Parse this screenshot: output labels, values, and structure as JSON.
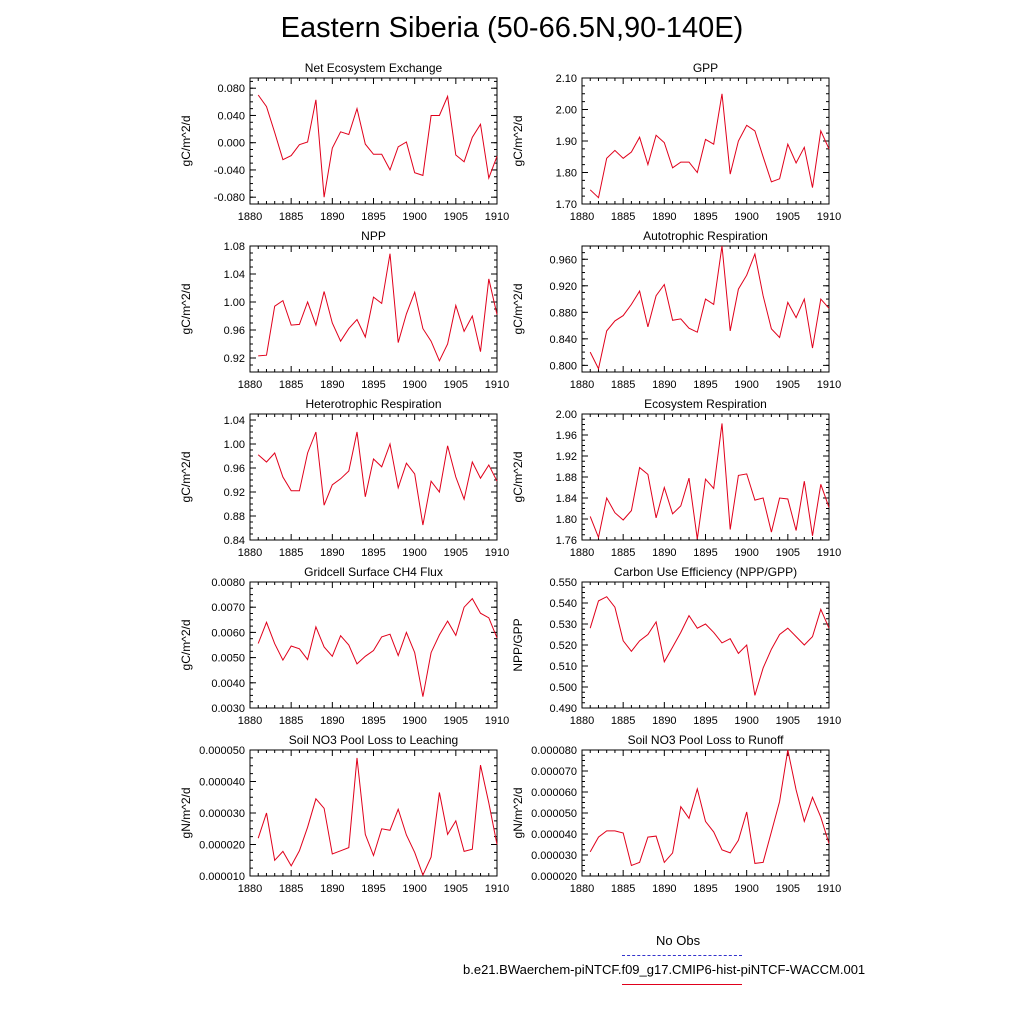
{
  "title": "Eastern Siberia (50-66.5N,90-140E)",
  "legend": {
    "obs_label": "No Obs",
    "obs_color": "#3333cc",
    "model_label": "b.e21.BWaerchem-piNTCF.f09_g17.CMIP6-hist-piNTCF-WACCM.001",
    "model_color": "#e0001b"
  },
  "chart_data": [
    {
      "type": "line",
      "title": "Net Ecosystem Exchange",
      "ylabel": "gC/m^2/d",
      "xlim": [
        1880,
        1910
      ],
      "ylim": [
        -0.09,
        0.095
      ],
      "xticks": [
        1880,
        1885,
        1890,
        1895,
        1900,
        1905,
        1910
      ],
      "yticks": [
        "-0.080",
        "-0.040",
        "0.000",
        "0.040",
        "0.080"
      ],
      "x": [
        1881,
        1882,
        1883,
        1884,
        1885,
        1886,
        1887,
        1888,
        1889,
        1890,
        1891,
        1892,
        1893,
        1894,
        1895,
        1896,
        1897,
        1898,
        1899,
        1900,
        1901,
        1902,
        1903,
        1904,
        1905,
        1906,
        1907,
        1908,
        1909,
        1910
      ],
      "values": [
        0.07,
        0.053,
        0.015,
        -0.025,
        -0.019,
        -0.003,
        0.001,
        0.063,
        -0.08,
        -0.008,
        0.016,
        0.012,
        0.05,
        -0.002,
        -0.017,
        -0.017,
        -0.04,
        -0.006,
        0.001,
        -0.044,
        -0.048,
        0.04,
        0.04,
        0.068,
        -0.018,
        -0.028,
        0.008,
        0.027,
        -0.052,
        -0.02
      ],
      "series_name": ""
    },
    {
      "type": "line",
      "title": "GPP",
      "ylabel": "gC/m^2/d",
      "xlim": [
        1880,
        1910
      ],
      "ylim": [
        1.7,
        2.1
      ],
      "xticks": [
        1880,
        1885,
        1890,
        1895,
        1900,
        1905,
        1910
      ],
      "yticks": [
        "1.70",
        "1.80",
        "1.90",
        "2.00",
        "2.10"
      ],
      "x": [
        1881,
        1882,
        1883,
        1884,
        1885,
        1886,
        1887,
        1888,
        1889,
        1890,
        1891,
        1892,
        1893,
        1894,
        1895,
        1896,
        1897,
        1898,
        1899,
        1900,
        1901,
        1902,
        1903,
        1904,
        1905,
        1906,
        1907,
        1908,
        1909,
        1910
      ],
      "values": [
        1.745,
        1.72,
        1.845,
        1.87,
        1.845,
        1.865,
        1.912,
        1.825,
        1.918,
        1.895,
        1.815,
        1.833,
        1.833,
        1.8,
        1.905,
        1.89,
        2.05,
        1.795,
        1.9,
        1.95,
        1.932,
        1.85,
        1.77,
        1.78,
        1.89,
        1.83,
        1.88,
        1.752,
        1.932,
        1.875
      ],
      "series_name": ""
    },
    {
      "type": "line",
      "title": "NPP",
      "ylabel": "gC/m^2/d",
      "xlim": [
        1880,
        1910
      ],
      "ylim": [
        0.9,
        1.08
      ],
      "xticks": [
        1880,
        1885,
        1890,
        1895,
        1900,
        1905,
        1910
      ],
      "yticks": [
        "0.92",
        "0.96",
        "1.00",
        "1.04",
        "1.08"
      ],
      "x": [
        1881,
        1882,
        1883,
        1884,
        1885,
        1886,
        1887,
        1888,
        1889,
        1890,
        1891,
        1892,
        1893,
        1894,
        1895,
        1896,
        1897,
        1898,
        1899,
        1900,
        1901,
        1902,
        1903,
        1904,
        1905,
        1906,
        1907,
        1908,
        1909,
        1910
      ],
      "values": [
        0.923,
        0.924,
        0.994,
        1.002,
        0.967,
        0.968,
        1.0,
        0.967,
        1.015,
        0.97,
        0.944,
        0.962,
        0.975,
        0.95,
        1.007,
        0.998,
        1.069,
        0.942,
        0.983,
        1.014,
        0.962,
        0.944,
        0.916,
        0.94,
        0.995,
        0.958,
        0.98,
        0.929,
        1.033,
        0.982
      ],
      "series_name": ""
    },
    {
      "type": "line",
      "title": "Autotrophic Respiration",
      "ylabel": "gC/m^2/d",
      "xlim": [
        1880,
        1910
      ],
      "ylim": [
        0.79,
        0.98
      ],
      "xticks": [
        1880,
        1885,
        1890,
        1895,
        1900,
        1905,
        1910
      ],
      "yticks": [
        "0.800",
        "0.840",
        "0.880",
        "0.920",
        "0.960"
      ],
      "x": [
        1881,
        1882,
        1883,
        1884,
        1885,
        1886,
        1887,
        1888,
        1889,
        1890,
        1891,
        1892,
        1893,
        1894,
        1895,
        1896,
        1897,
        1898,
        1899,
        1900,
        1901,
        1902,
        1903,
        1904,
        1905,
        1906,
        1907,
        1908,
        1909,
        1910
      ],
      "values": [
        0.82,
        0.795,
        0.852,
        0.867,
        0.875,
        0.892,
        0.912,
        0.858,
        0.905,
        0.922,
        0.868,
        0.87,
        0.856,
        0.85,
        0.9,
        0.892,
        0.98,
        0.852,
        0.915,
        0.936,
        0.968,
        0.905,
        0.855,
        0.842,
        0.895,
        0.872,
        0.9,
        0.826,
        0.9,
        0.886
      ],
      "series_name": ""
    },
    {
      "type": "line",
      "title": "Heterotrophic Respiration",
      "ylabel": "gC/m^2/d",
      "xlim": [
        1880,
        1910
      ],
      "ylim": [
        0.84,
        1.05
      ],
      "xticks": [
        1880,
        1885,
        1890,
        1895,
        1900,
        1905,
        1910
      ],
      "yticks": [
        "0.84",
        "0.88",
        "0.92",
        "0.96",
        "1.00",
        "1.04"
      ],
      "x": [
        1881,
        1882,
        1883,
        1884,
        1885,
        1886,
        1887,
        1888,
        1889,
        1890,
        1891,
        1892,
        1893,
        1894,
        1895,
        1896,
        1897,
        1898,
        1899,
        1900,
        1901,
        1902,
        1903,
        1904,
        1905,
        1906,
        1907,
        1908,
        1909,
        1910
      ],
      "values": [
        0.982,
        0.97,
        0.985,
        0.945,
        0.922,
        0.922,
        0.985,
        1.02,
        0.898,
        0.932,
        0.942,
        0.955,
        1.02,
        0.912,
        0.975,
        0.962,
        1.0,
        0.927,
        0.968,
        0.95,
        0.865,
        0.938,
        0.92,
        0.997,
        0.945,
        0.908,
        0.97,
        0.943,
        0.965,
        0.938
      ],
      "series_name": ""
    },
    {
      "type": "line",
      "title": "Ecosystem Respiration",
      "ylabel": "gC/m^2/d",
      "xlim": [
        1880,
        1910
      ],
      "ylim": [
        1.76,
        2.0
      ],
      "xticks": [
        1880,
        1885,
        1890,
        1895,
        1900,
        1905,
        1910
      ],
      "yticks": [
        "1.76",
        "1.80",
        "1.84",
        "1.88",
        "1.92",
        "1.96",
        "2.00"
      ],
      "x": [
        1881,
        1882,
        1883,
        1884,
        1885,
        1886,
        1887,
        1888,
        1889,
        1890,
        1891,
        1892,
        1893,
        1894,
        1895,
        1896,
        1897,
        1898,
        1899,
        1900,
        1901,
        1902,
        1903,
        1904,
        1905,
        1906,
        1907,
        1908,
        1909,
        1910
      ],
      "values": [
        1.805,
        1.765,
        1.84,
        1.812,
        1.798,
        1.816,
        1.898,
        1.885,
        1.802,
        1.86,
        1.81,
        1.825,
        1.878,
        1.762,
        1.876,
        1.858,
        1.982,
        1.78,
        1.883,
        1.886,
        1.836,
        1.84,
        1.775,
        1.84,
        1.838,
        1.778,
        1.872,
        1.768,
        1.866,
        1.822
      ],
      "series_name": ""
    },
    {
      "type": "line",
      "title": "Gridcell Surface CH4 Flux",
      "ylabel": "gC/m^2/d",
      "xlim": [
        1880,
        1910
      ],
      "ylim": [
        0.003,
        0.008
      ],
      "xticks": [
        1880,
        1885,
        1890,
        1895,
        1900,
        1905,
        1910
      ],
      "yticks": [
        "0.0030",
        "0.0040",
        "0.0050",
        "0.0060",
        "0.0070",
        "0.0080"
      ],
      "x": [
        1881,
        1882,
        1883,
        1884,
        1885,
        1886,
        1887,
        1888,
        1889,
        1890,
        1891,
        1892,
        1893,
        1894,
        1895,
        1896,
        1897,
        1898,
        1899,
        1900,
        1901,
        1902,
        1903,
        1904,
        1905,
        1906,
        1907,
        1908,
        1909,
        1910
      ],
      "values": [
        0.00556,
        0.0064,
        0.00555,
        0.0049,
        0.00546,
        0.00535,
        0.00492,
        0.00622,
        0.00542,
        0.00505,
        0.00587,
        0.0055,
        0.00475,
        0.00505,
        0.00528,
        0.00582,
        0.00593,
        0.00508,
        0.006,
        0.0052,
        0.00345,
        0.0052,
        0.0059,
        0.00645,
        0.00588,
        0.007,
        0.00734,
        0.00676,
        0.00658,
        0.00578
      ],
      "series_name": ""
    },
    {
      "type": "line",
      "title": "Carbon Use Efficiency (NPP/GPP)",
      "ylabel": "NPP/GPP",
      "xlim": [
        1880,
        1910
      ],
      "ylim": [
        0.49,
        0.55
      ],
      "xticks": [
        1880,
        1885,
        1890,
        1895,
        1900,
        1905,
        1910
      ],
      "yticks": [
        "0.490",
        "0.500",
        "0.510",
        "0.520",
        "0.530",
        "0.540",
        "0.550"
      ],
      "x": [
        1881,
        1882,
        1883,
        1884,
        1885,
        1886,
        1887,
        1888,
        1889,
        1890,
        1891,
        1892,
        1893,
        1894,
        1895,
        1896,
        1897,
        1898,
        1899,
        1900,
        1901,
        1902,
        1903,
        1904,
        1905,
        1906,
        1907,
        1908,
        1909,
        1910
      ],
      "values": [
        0.528,
        0.541,
        0.543,
        0.538,
        0.522,
        0.517,
        0.522,
        0.525,
        0.531,
        0.512,
        0.519,
        0.526,
        0.534,
        0.528,
        0.53,
        0.526,
        0.521,
        0.523,
        0.516,
        0.52,
        0.496,
        0.509,
        0.518,
        0.525,
        0.528,
        0.524,
        0.52,
        0.524,
        0.537,
        0.528
      ],
      "series_name": ""
    },
    {
      "type": "line",
      "title": "Soil NO3 Pool Loss to Leaching",
      "ylabel": "gN/m^2/d",
      "xlim": [
        1880,
        1910
      ],
      "ylim": [
        1e-05,
        5e-05
      ],
      "xticks": [
        1880,
        1885,
        1890,
        1895,
        1900,
        1905,
        1910
      ],
      "yticks": [
        "0.000010",
        "0.000020",
        "0.000030",
        "0.000040",
        "0.000050"
      ],
      "x": [
        1881,
        1882,
        1883,
        1884,
        1885,
        1886,
        1887,
        1888,
        1889,
        1890,
        1891,
        1892,
        1893,
        1894,
        1895,
        1896,
        1897,
        1898,
        1899,
        1900,
        1901,
        1902,
        1903,
        1904,
        1905,
        1906,
        1907,
        1908,
        1909,
        1910
      ],
      "values": [
        2.2e-05,
        3e-05,
        1.5e-05,
        1.78e-05,
        1.32e-05,
        1.8e-05,
        2.55e-05,
        3.45e-05,
        3.15e-05,
        1.7e-05,
        1.8e-05,
        1.9e-05,
        4.75e-05,
        2.32e-05,
        1.65e-05,
        2.5e-05,
        2.45e-05,
        3.12e-05,
        2.3e-05,
        1.75e-05,
        1.03e-05,
        1.6e-05,
        3.65e-05,
        2.32e-05,
        2.75e-05,
        1.78e-05,
        1.85e-05,
        4.52e-05,
        3.32e-05,
        2e-05
      ],
      "series_name": ""
    },
    {
      "type": "line",
      "title": "Soil NO3 Pool Loss to Runoff",
      "ylabel": "gN/m^2/d",
      "xlim": [
        1880,
        1910
      ],
      "ylim": [
        2e-05,
        8e-05
      ],
      "xticks": [
        1880,
        1885,
        1890,
        1895,
        1900,
        1905,
        1910
      ],
      "yticks": [
        "0.000020",
        "0.000030",
        "0.000040",
        "0.000050",
        "0.000060",
        "0.000070",
        "0.000080"
      ],
      "x": [
        1881,
        1882,
        1883,
        1884,
        1885,
        1886,
        1887,
        1888,
        1889,
        1890,
        1891,
        1892,
        1893,
        1894,
        1895,
        1896,
        1897,
        1898,
        1899,
        1900,
        1901,
        1902,
        1903,
        1904,
        1905,
        1906,
        1907,
        1908,
        1909,
        1910
      ],
      "values": [
        3.15e-05,
        3.85e-05,
        4.15e-05,
        4.15e-05,
        4.05e-05,
        2.5e-05,
        2.65e-05,
        3.85e-05,
        3.9e-05,
        2.65e-05,
        3.1e-05,
        5.3e-05,
        4.75e-05,
        6.15e-05,
        4.6e-05,
        4.1e-05,
        3.25e-05,
        3.1e-05,
        3.7e-05,
        5.05e-05,
        2.6e-05,
        2.65e-05,
        4.1e-05,
        5.55e-05,
        8e-05,
        6.1e-05,
        4.6e-05,
        5.75e-05,
        4.8e-05,
        3.55e-05
      ],
      "series_name": ""
    }
  ]
}
